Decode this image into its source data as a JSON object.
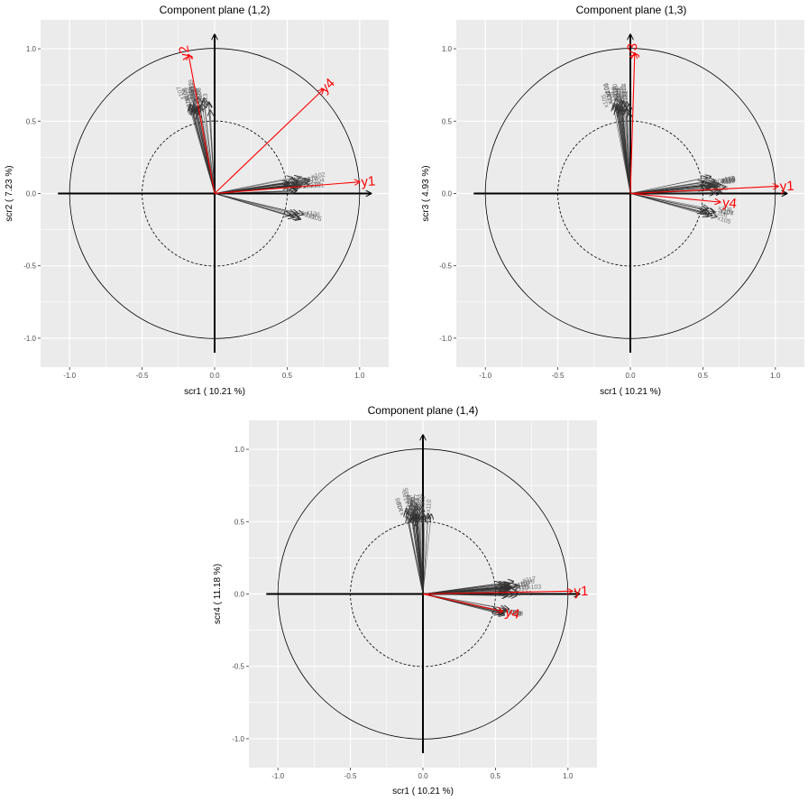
{
  "chart_data": [
    {
      "type": "scatter",
      "title": "Component plane (1,2)",
      "xlabel": "scr1 ( 10.21 %)",
      "ylabel": "scr2 ( 7.23 %)",
      "xlim": [
        -1.2,
        1.2
      ],
      "ylim": [
        -1.2,
        1.2
      ],
      "xticks": [
        "-1.0",
        "-0.5",
        "0.0",
        "0.5",
        "1.0"
      ],
      "yticks": [
        "-1.0",
        "-0.5",
        "0.0",
        "0.5",
        "1.0"
      ],
      "circles": [
        1.0,
        0.5
      ],
      "vectors": [
        {
          "name": "y1",
          "x": 1.0,
          "y": 0.08,
          "color": "#ff0000"
        },
        {
          "name": "y2",
          "x": -0.18,
          "y": 0.96,
          "color": "#ff0000"
        },
        {
          "name": "y4",
          "x": 0.75,
          "y": 0.72,
          "color": "#ff0000"
        }
      ],
      "clusters": [
        {
          "cx": -0.12,
          "cy": 0.6,
          "n": 26,
          "spread": 0.1,
          "labels": [
            "x101",
            "x102",
            "x103",
            "x104",
            "x105",
            "x106",
            "x107",
            "x108",
            "x109",
            "x110",
            "x111",
            "x112",
            "x113",
            "x114",
            "x115",
            "x116",
            "x117",
            "x118",
            "x119",
            "x120"
          ]
        },
        {
          "cx": 0.58,
          "cy": 0.06,
          "n": 30,
          "spread": 0.09,
          "labels": [
            "x119",
            "x104",
            "x112",
            "x103",
            "x110",
            "x102",
            "x115",
            "x101",
            "x118",
            "x120",
            "x117"
          ]
        },
        {
          "cx": 0.58,
          "cy": -0.14,
          "n": 8,
          "spread": 0.06,
          "labels": [
            "x105",
            "x106",
            "x109",
            "x108"
          ]
        }
      ]
    },
    {
      "type": "scatter",
      "title": "Component plane (1,3)",
      "xlabel": "scr1 ( 10.21 %)",
      "ylabel": "scr3 ( 4.93 %)",
      "xlim": [
        -1.2,
        1.2
      ],
      "ylim": [
        -1.2,
        1.2
      ],
      "xticks": [
        "-1.0",
        "-0.5",
        "0.0",
        "0.5",
        "1.0"
      ],
      "yticks": [
        "-1.0",
        "-0.5",
        "0.0",
        "0.5",
        "1.0"
      ],
      "circles": [
        1.0,
        0.5
      ],
      "vectors": [
        {
          "name": "y1",
          "x": 1.02,
          "y": 0.05,
          "color": "#ff0000"
        },
        {
          "name": "y3",
          "x": 0.03,
          "y": 0.97,
          "color": "#ff0000"
        },
        {
          "name": "y4",
          "x": 0.62,
          "y": -0.06,
          "color": "#ff0000"
        }
      ],
      "clusters": [
        {
          "cx": -0.07,
          "cy": 0.6,
          "n": 28,
          "spread": 0.09,
          "labels": [
            "x101",
            "x102",
            "x103",
            "x104",
            "x105",
            "x106",
            "x107",
            "x108",
            "x109",
            "x110",
            "x111",
            "x112",
            "x113",
            "x114",
            "x115",
            "x116",
            "x117",
            "x118",
            "x119",
            "x120"
          ]
        },
        {
          "cx": 0.58,
          "cy": 0.06,
          "n": 30,
          "spread": 0.09,
          "labels": [
            "x112",
            "x110",
            "x103",
            "x119",
            "x102",
            "x115",
            "x118",
            "x120",
            "x117"
          ]
        },
        {
          "cx": 0.56,
          "cy": -0.14,
          "n": 10,
          "spread": 0.07,
          "labels": [
            "x104",
            "x106",
            "x105",
            "x109",
            "x107"
          ]
        }
      ]
    },
    {
      "type": "scatter",
      "title": "Component plane (1,4)",
      "xlabel": "scr1 ( 10.21 %)",
      "ylabel": "scr4 ( 11.18 %)",
      "xlim": [
        -1.2,
        1.2
      ],
      "ylim": [
        -1.2,
        1.2
      ],
      "xticks": [
        "-1.0",
        "-0.5",
        "0.0",
        "0.5",
        "1.0"
      ],
      "yticks": [
        "-1.0",
        "-0.5",
        "0.0",
        "0.5",
        "1.0"
      ],
      "circles": [
        1.0,
        0.5
      ],
      "vectors": [
        {
          "name": "y1",
          "x": 1.03,
          "y": 0.02,
          "color": "#ff0000"
        },
        {
          "name": "y4",
          "x": 0.55,
          "y": -0.12,
          "color": "#ff0000"
        }
      ],
      "clusters": [
        {
          "cx": -0.05,
          "cy": 0.55,
          "n": 36,
          "spread": 0.11,
          "labels": [
            "x101",
            "x102",
            "x103",
            "x104",
            "x105",
            "x106",
            "x107",
            "x108",
            "x109",
            "x110",
            "x111",
            "x112",
            "x113",
            "x114",
            "x115",
            "x116",
            "x117",
            "x118",
            "x119",
            "x120"
          ]
        },
        {
          "cx": 0.6,
          "cy": 0.04,
          "n": 34,
          "spread": 0.09,
          "labels": [
            "x116",
            "x103",
            "x112",
            "x110",
            "x118",
            "x119",
            "x120",
            "x117",
            "x102"
          ]
        },
        {
          "cx": 0.56,
          "cy": -0.13,
          "n": 10,
          "spread": 0.06,
          "labels": [
            "x105",
            "x106",
            "x109",
            "x107"
          ]
        }
      ]
    }
  ]
}
